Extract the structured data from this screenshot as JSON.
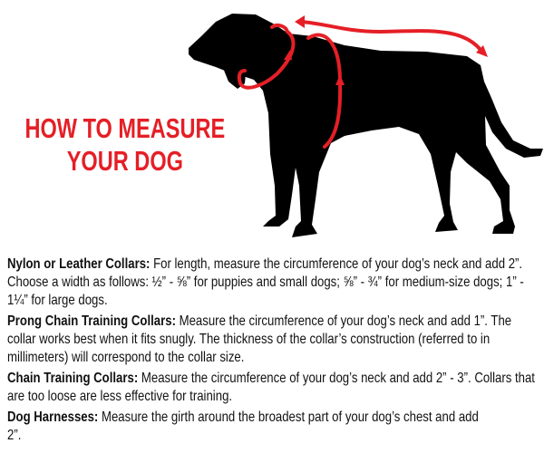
{
  "title": {
    "line1": "HOW TO MEASURE",
    "line2": "YOUR DOG"
  },
  "colors": {
    "accent": "#e51f26",
    "silhouette": "#000000"
  },
  "illustration": {
    "subject": "dog-silhouette",
    "markers": [
      "neck-circumference-loop",
      "chest-girth-loop",
      "back-length-arrow"
    ]
  },
  "sections": [
    {
      "label": "Nylon or Leather Collars:",
      "text": " For length, measure the circumference of your dog’s neck and add 2”. Choose a width as follows: ½” - ⅝” for puppies and small dogs; ⅝” - ¾” for medium-size dogs; 1” - 1¼” for large dogs."
    },
    {
      "label": "Prong Chain Training Collars:",
      "text": " Measure the circumference of your dog’s neck and add 1”. The collar works best when it fits snugly. The thickness of the collar’s construction (referred to in millimeters) will correspond to the collar size."
    },
    {
      "label": "Chain Training Collars:",
      "text": " Measure the circumference of your dog’s neck and add 2” - 3”. Collars that are too loose are less effective for training."
    },
    {
      "label": "Dog Harnesses:",
      "text": " Measure the girth around the broadest part of your dog’s chest and add 2”."
    }
  ]
}
